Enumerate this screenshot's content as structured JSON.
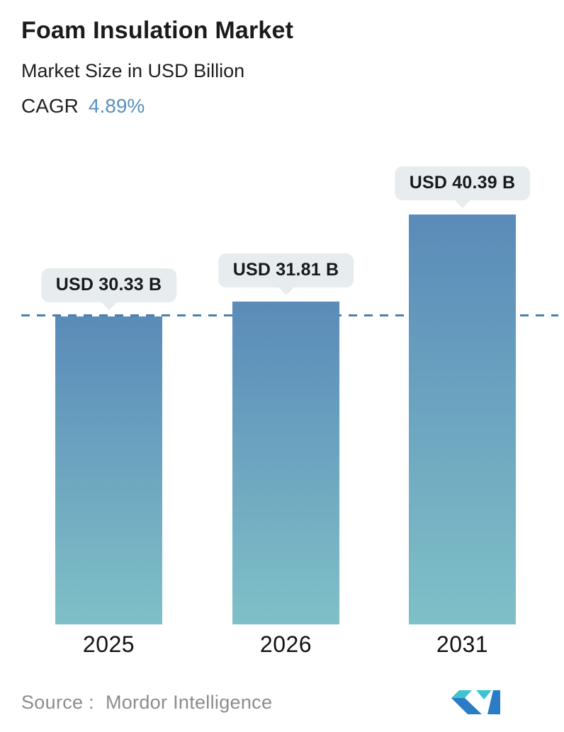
{
  "header": {
    "title": "Foam Insulation Market",
    "subtitle": "Market Size in USD Billion",
    "cagr_label": "CAGR",
    "cagr_value": "4.89%"
  },
  "chart_data": {
    "type": "bar",
    "categories": [
      "2025",
      "2026",
      "2031"
    ],
    "values": [
      30.33,
      31.81,
      40.39
    ],
    "bar_labels": [
      "USD 30.33 B",
      "USD 31.81 B",
      "USD 40.39 B"
    ],
    "unit": "USD Billion",
    "title": "Foam Insulation Market",
    "ylabel": "",
    "xlabel": "",
    "ylim": [
      0,
      46
    ],
    "grid": false,
    "legend": false,
    "reference_line": {
      "value": 30.33,
      "style": "dashed",
      "note": "level of 2025 base-year value"
    },
    "colors": {
      "bar_gradient_top": "#5a8bb9",
      "bar_gradient_bottom": "#7fc0c7",
      "reference_line": "#4e81aa",
      "label_pill_bg": "#e7edef",
      "label_pill_text": "#17191b",
      "cagr_accent": "#5b8fbe"
    }
  },
  "footer": {
    "source_label": "Source :",
    "source_value": "Mordor Intelligence",
    "logo_name": "mordor-intelligence-logo",
    "logo_colors": {
      "blue": "#2a7cc4",
      "teal": "#3ec4cf"
    }
  }
}
